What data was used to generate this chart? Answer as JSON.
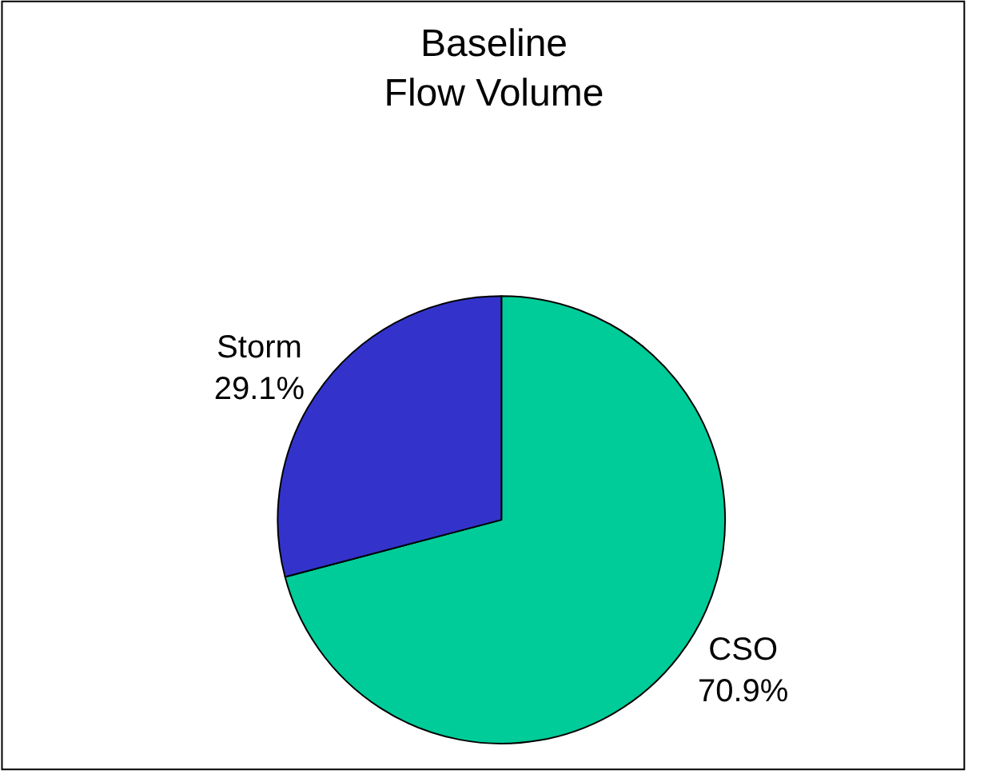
{
  "chart_data": {
    "type": "pie",
    "title": "Baseline\nFlow Volume",
    "categories": [
      "CSO",
      "Storm"
    ],
    "values": [
      70.9,
      29.1
    ],
    "colors": [
      "#00cc99",
      "#3333cc"
    ],
    "value_labels": [
      "70.9%",
      "29.1%"
    ],
    "legend": false
  }
}
